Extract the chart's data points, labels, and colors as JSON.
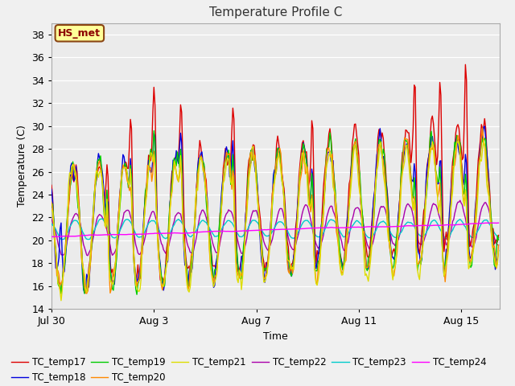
{
  "title": "Temperature Profile C",
  "xlabel": "Time",
  "ylabel": "Temperature (C)",
  "ylim": [
    14,
    39
  ],
  "yticks": [
    14,
    16,
    18,
    20,
    22,
    24,
    26,
    28,
    30,
    32,
    34,
    36,
    38
  ],
  "fig_bg_color": "#f0f0f0",
  "plot_bg_color": "#ebebeb",
  "annotation_text": "HS_met",
  "annotation_box_color": "#ffff99",
  "annotation_border_color": "#8b4513",
  "series_colors": {
    "TC_temp17": "#dd0000",
    "TC_temp18": "#0000dd",
    "TC_temp19": "#00cc00",
    "TC_temp20": "#ff8800",
    "TC_temp21": "#dddd00",
    "TC_temp22": "#aa00aa",
    "TC_temp23": "#00cccc",
    "TC_temp24": "#ff00ff"
  },
  "x_tick_labels": [
    "Jul 30",
    "Aug 3",
    "Aug 7",
    "Aug 11",
    "Aug 15"
  ],
  "x_tick_positions": [
    0,
    4,
    8,
    12,
    16
  ],
  "total_days": 17.5,
  "seed": 42
}
